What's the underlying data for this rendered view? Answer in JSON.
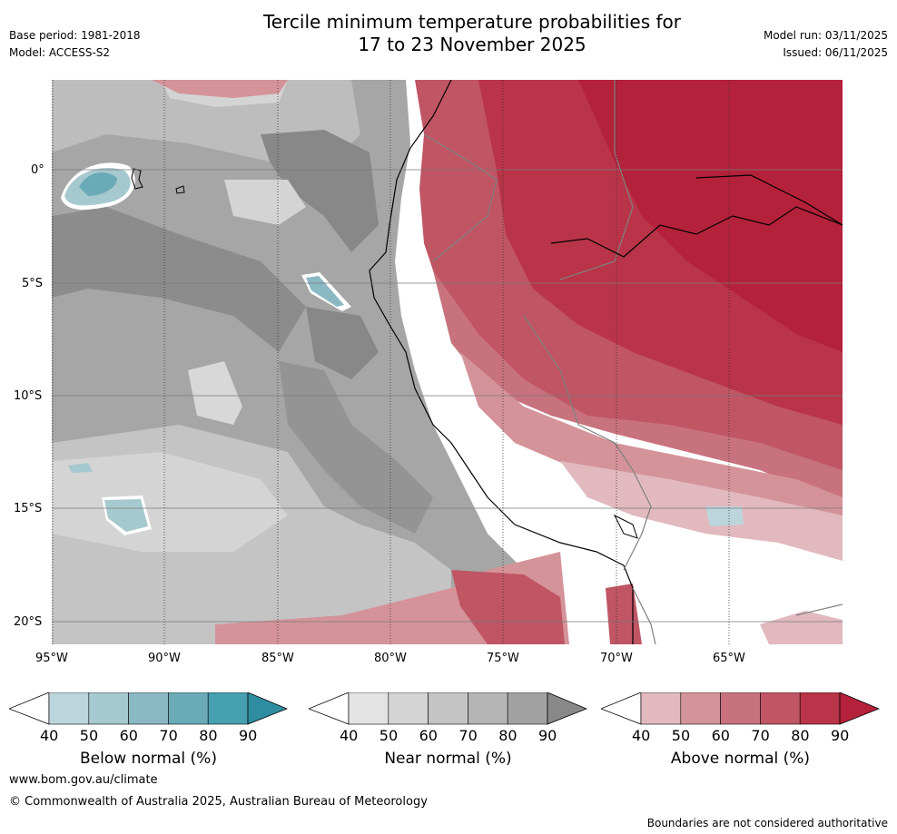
{
  "title_line1": "Tercile minimum temperature probabilities for",
  "title_line2": "17 to 23 November 2025",
  "base_period": "Base period: 1981-2018",
  "model": "Model: ACCESS-S2",
  "model_run": "Model run: 03/11/2025",
  "issued": "Issued: 06/11/2025",
  "lat_labels": [
    "0°",
    "5°S",
    "10°S",
    "15°S",
    "20°S"
  ],
  "lon_labels": [
    "95°W",
    "90°W",
    "85°W",
    "80°W",
    "75°W",
    "70°W",
    "65°W"
  ],
  "colorbars": [
    {
      "label": "Below normal (%)",
      "ticks": [
        "40",
        "50",
        "60",
        "70",
        "80",
        "90"
      ],
      "colors": [
        "#bcd5dc",
        "#a6c9cf",
        "#8ab8c3",
        "#6aabb7",
        "#47a0b0",
        "#2e8da0"
      ]
    },
    {
      "label": "Near normal (%)",
      "ticks": [
        "40",
        "50",
        "60",
        "70",
        "80",
        "90"
      ],
      "colors": [
        "#e3e3e3",
        "#d4d4d4",
        "#c4c4c4",
        "#b4b4b4",
        "#a2a2a2",
        "#888888"
      ]
    },
    {
      "label": "Above normal (%)",
      "ticks": [
        "40",
        "50",
        "60",
        "70",
        "80",
        "90"
      ],
      "colors": [
        "#e1b9be",
        "#d49399",
        "#c8727d",
        "#c05564",
        "#b93448",
        "#b4213a"
      ]
    }
  ],
  "website": "www.bom.gov.au/climate",
  "copyright": "© Commonwealth of Australia 2025, Australian Bureau of Meteorology",
  "disclaimer": "Boundaries are not considered authoritative"
}
